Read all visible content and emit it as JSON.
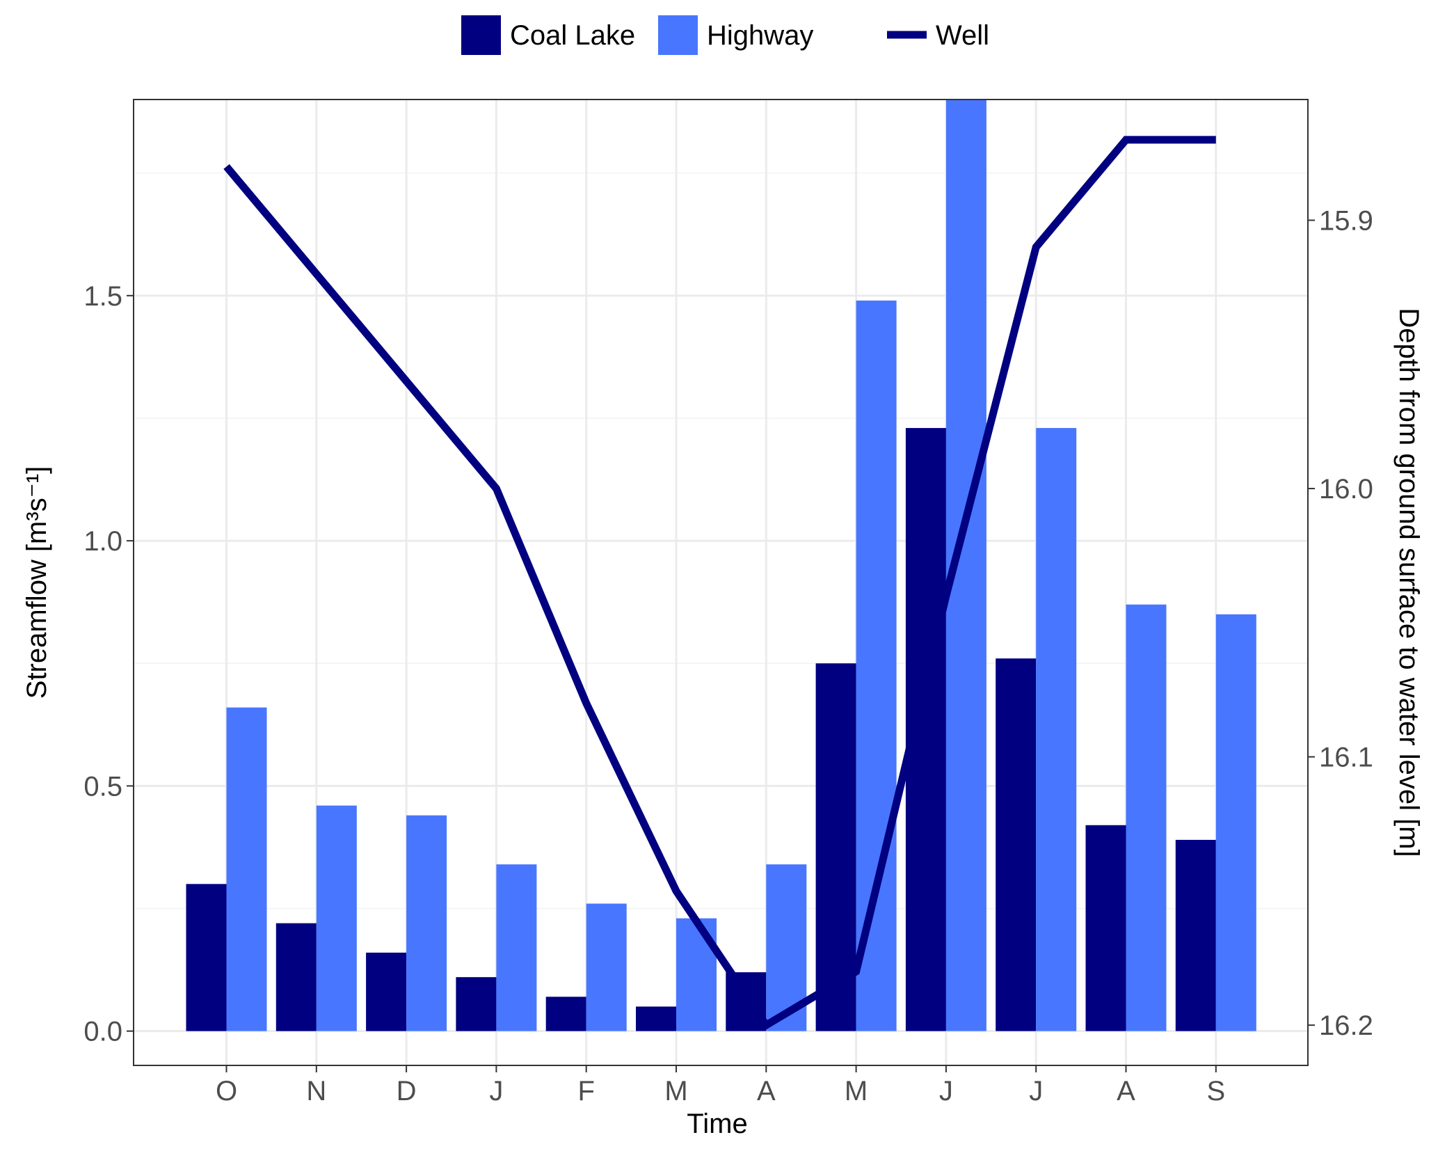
{
  "chart_data": {
    "type": "bar",
    "title": "",
    "xlabel": "Time",
    "ylabel": "Streamflow [m³s⁻¹]",
    "y2label": "Depth from ground surface to water level [m]",
    "categories": [
      "O",
      "N",
      "D",
      "J",
      "F",
      "M",
      "A",
      "M",
      "J",
      "J",
      "A",
      "S"
    ],
    "ylim": [
      -0.07,
      1.9
    ],
    "y_ticks": [
      "0.0",
      "0.5",
      "1.0",
      "1.5"
    ],
    "y2lim": [
      16.215,
      15.855
    ],
    "y2_inverted": true,
    "y2_ticks": [
      "15.9",
      "16.0",
      "16.1",
      "16.2"
    ],
    "grid": true,
    "legend_position": "top",
    "series": [
      {
        "name": "Coal Lake",
        "type": "bar",
        "axis": "left",
        "color": "#000080",
        "values": [
          0.3,
          0.22,
          0.16,
          0.11,
          0.07,
          0.05,
          0.12,
          0.75,
          1.23,
          0.76,
          0.42,
          0.39
        ]
      },
      {
        "name": "Highway",
        "type": "bar",
        "axis": "left",
        "color": "#4876FF",
        "values": [
          0.66,
          0.46,
          0.44,
          0.34,
          0.26,
          0.23,
          0.34,
          1.49,
          1.9,
          1.23,
          0.87,
          0.85
        ]
      },
      {
        "name": "Well",
        "type": "line",
        "axis": "right",
        "color": "#000080",
        "values": [
          15.88,
          15.92,
          15.96,
          16.0,
          16.08,
          16.15,
          16.2,
          16.18,
          16.04,
          15.91,
          15.87,
          15.87
        ]
      }
    ]
  }
}
